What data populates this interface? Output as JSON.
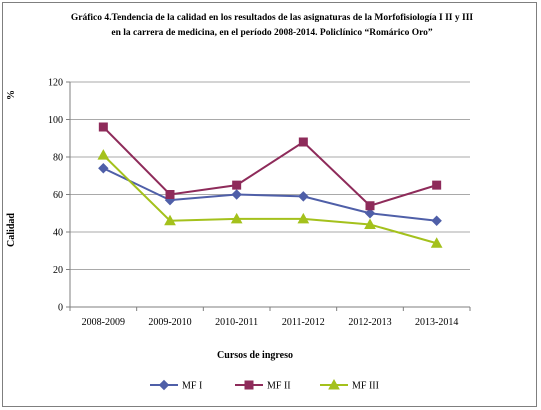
{
  "chart_data": {
    "type": "line",
    "title_line1": "Gráfico 4.Tendencia de la calidad en los resultados de las asignaturas de la Morfofisiología I II y III",
    "title_line2": "en la carrera de medicina, en el período 2008-2014. Policlínico “Romárico Oro”",
    "xlabel": "Cursos de ingreso",
    "ylabel": "Calidad",
    "y_unit": "%",
    "ylim": [
      0,
      120
    ],
    "yticks": [
      0,
      20,
      40,
      60,
      80,
      100,
      120
    ],
    "grid": true,
    "legend_position": "bottom",
    "categories": [
      "2008-2009",
      "2009-2010",
      "2010-2011",
      "2011-2012",
      "2012-2013",
      "2013-2014"
    ],
    "series": [
      {
        "name": "MF I",
        "color": "#4f5fa8",
        "marker": "diamond",
        "values": [
          74,
          57,
          60,
          59,
          50,
          46
        ]
      },
      {
        "name": "MF II",
        "color": "#8e2b5a",
        "marker": "square",
        "values": [
          96,
          60,
          65,
          88,
          54,
          65
        ]
      },
      {
        "name": "MF III",
        "color": "#a4c11c",
        "marker": "triangle",
        "values": [
          81,
          46,
          47,
          47,
          44,
          34
        ]
      }
    ]
  }
}
